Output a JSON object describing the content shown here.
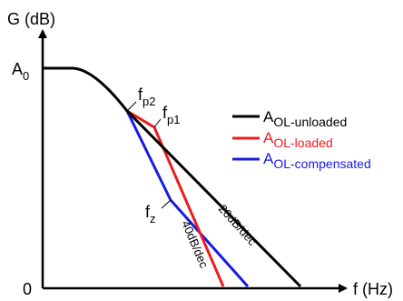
{
  "axes": {
    "y_label": "G (dB)",
    "x_label": "f (Hz)",
    "y_top_tick": {
      "base": "A",
      "sub": "0"
    },
    "origin_label": "0"
  },
  "points": {
    "fp2": {
      "base": "f",
      "sub": "p2"
    },
    "fp1": {
      "base": "f",
      "sub": "p1"
    },
    "fz": {
      "base": "f",
      "sub": "z"
    }
  },
  "slopes": {
    "slope_40": "40dB/dec",
    "slope_20": "20dB/dec"
  },
  "legend": {
    "items": [
      {
        "base": "A",
        "sub": "OL-unloaded",
        "color": "#000000"
      },
      {
        "base": "A",
        "sub": "OL-loaded",
        "color": "#ee1c1c"
      },
      {
        "base": "A",
        "sub": "OL-compensated",
        "color": "#1a1ae6"
      }
    ]
  },
  "colors": {
    "unloaded": "#000000",
    "loaded": "#ee1c1c",
    "compensated": "#1a1ae6",
    "axis": "#000000"
  }
}
